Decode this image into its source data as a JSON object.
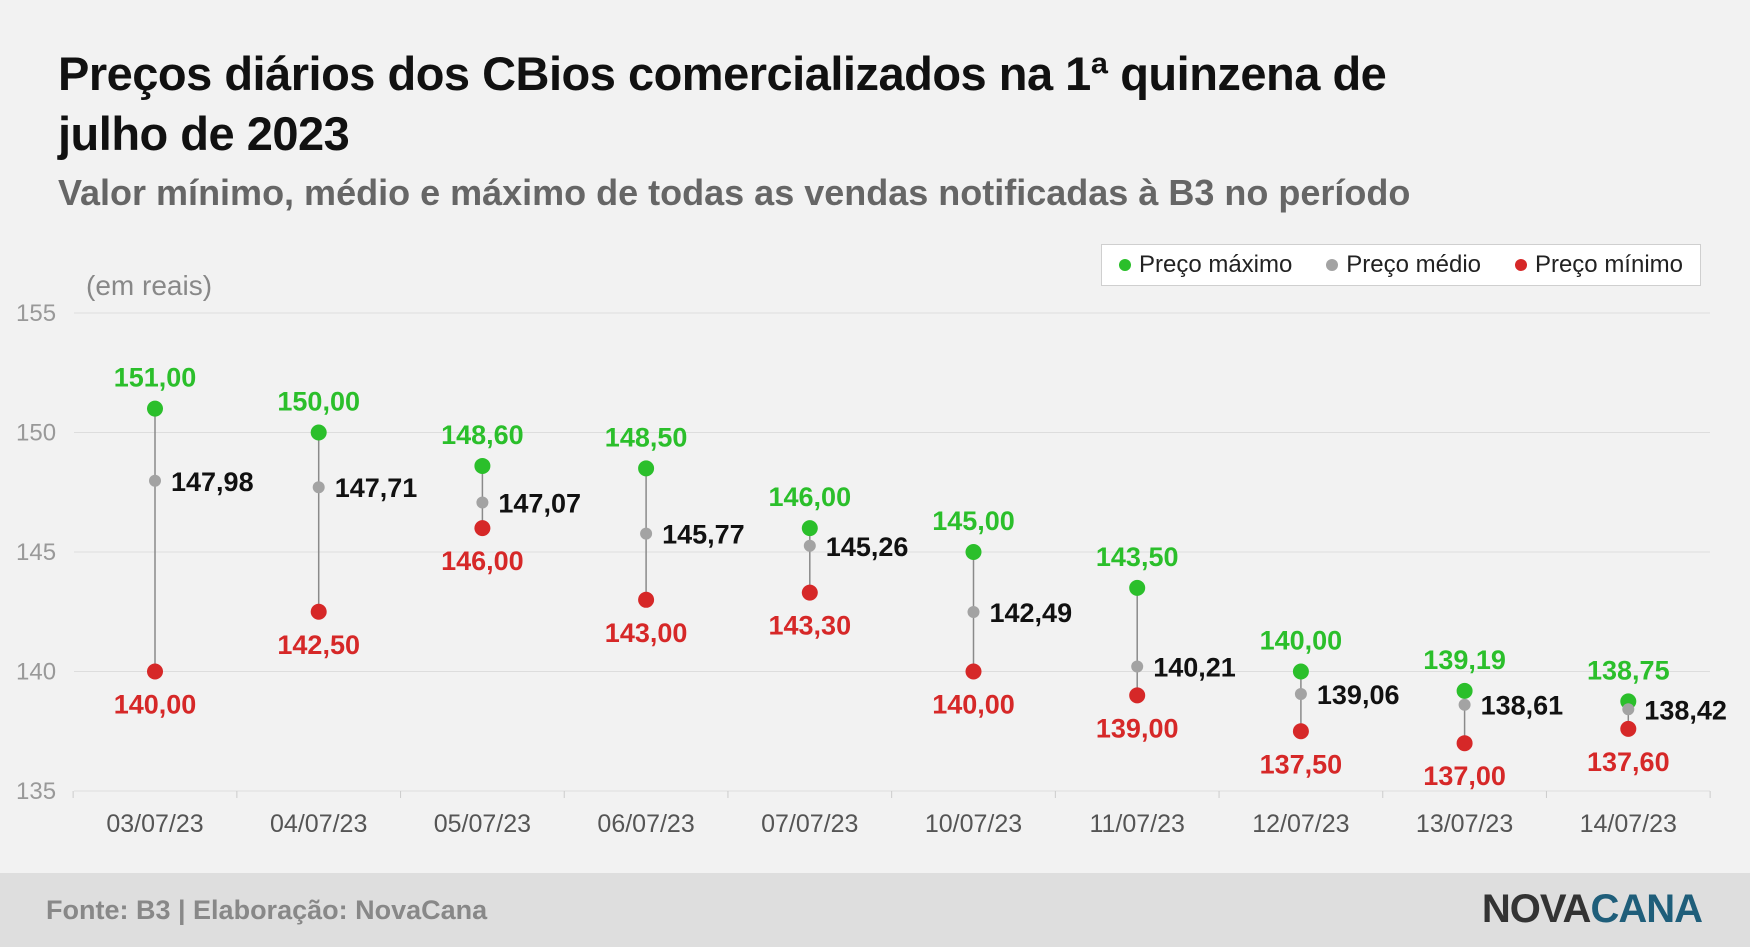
{
  "title": "Preços diários dos CBios comercializados na 1ª quinzena de julho de 2023",
  "subtitle": "Valor mínimo, médio e máximo de todas as vendas notificadas à B3 no período",
  "unit_note": "(em reais)",
  "legend": {
    "max": "Preço máximo",
    "avg": "Preço médio",
    "min": "Preço mínimo"
  },
  "colors": {
    "max": "#2bbf2b",
    "avg": "#a3a3a3",
    "min": "#d62828",
    "avg_label": "#111111",
    "grid": "#dddddd",
    "tick": "#999999"
  },
  "footer": {
    "source": "Fonte: B3 | Elaboração: NovaCana",
    "logo_part1": "NOVA",
    "logo_part2": "CANA"
  },
  "chart_data": {
    "type": "dumbbell",
    "categories": [
      "03/07/23",
      "04/07/23",
      "05/07/23",
      "06/07/23",
      "07/07/23",
      "10/07/23",
      "11/07/23",
      "12/07/23",
      "13/07/23",
      "14/07/23"
    ],
    "series": [
      {
        "name": "Preço máximo",
        "key": "max",
        "values": [
          151.0,
          150.0,
          148.6,
          148.5,
          146.0,
          145.0,
          143.5,
          140.0,
          139.19,
          138.75
        ],
        "labels": [
          "151,00",
          "150,00",
          "148,60",
          "148,50",
          "146,00",
          "145,00",
          "143,50",
          "140,00",
          "139,19",
          "138,75"
        ]
      },
      {
        "name": "Preço médio",
        "key": "avg",
        "values": [
          147.98,
          147.71,
          147.07,
          145.77,
          145.26,
          142.49,
          140.21,
          139.06,
          138.61,
          138.42
        ],
        "labels": [
          "147,98",
          "147,71",
          "147,07",
          "145,77",
          "145,26",
          "142,49",
          "140,21",
          "139,06",
          "138,61",
          "138,42"
        ]
      },
      {
        "name": "Preço mínimo",
        "key": "min",
        "values": [
          140.0,
          142.5,
          146.0,
          143.0,
          143.3,
          140.0,
          139.0,
          137.5,
          137.0,
          137.6
        ],
        "labels": [
          "140,00",
          "142,50",
          "146,00",
          "143,00",
          "143,30",
          "140,00",
          "139,00",
          "137,50",
          "137,00",
          "137,60"
        ]
      }
    ],
    "ylim": [
      135,
      155
    ],
    "yticks": [
      135,
      140,
      145,
      150,
      155
    ],
    "ytick_labels": [
      "135",
      "140",
      "145",
      "150",
      "155"
    ],
    "grid": true,
    "legend_position": "top-right"
  }
}
